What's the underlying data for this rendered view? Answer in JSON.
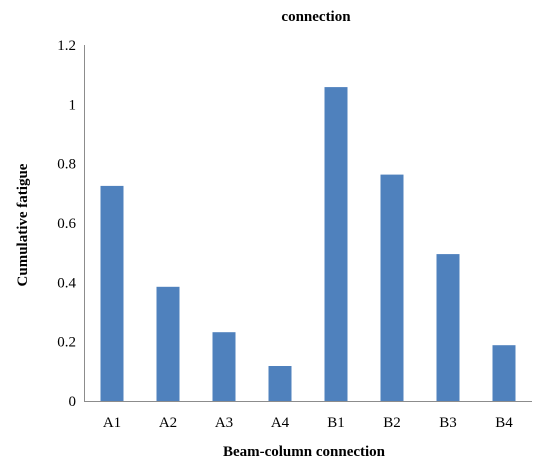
{
  "chart_data": {
    "type": "bar",
    "title": "connection",
    "xlabel": "Beam-column connection",
    "ylabel": "Cumulative fatigue",
    "categories": [
      "A1",
      "A2",
      "A3",
      "A4",
      "B1",
      "B2",
      "B3",
      "B4"
    ],
    "values": [
      0.725,
      0.385,
      0.232,
      0.118,
      1.058,
      0.763,
      0.495,
      0.188
    ],
    "ylim": [
      0,
      1.2
    ],
    "yticks": [
      0,
      0.2,
      0.4,
      0.6,
      0.8,
      1,
      1.2
    ],
    "ytick_labels": [
      "0",
      "0.2",
      "0.4",
      "0.6",
      "0.8",
      "1",
      "1.2"
    ],
    "grid": false,
    "legend": "none",
    "bar_color": "#4f81bd",
    "axis_color": "#8c8c8c"
  }
}
